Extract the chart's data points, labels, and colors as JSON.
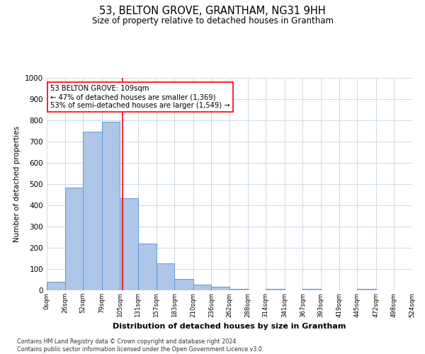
{
  "title": "53, BELTON GROVE, GRANTHAM, NG31 9HH",
  "subtitle": "Size of property relative to detached houses in Grantham",
  "xlabel": "Distribution of detached houses by size in Grantham",
  "ylabel": "Number of detached properties",
  "bar_edges": [
    0,
    26,
    52,
    79,
    105,
    131,
    157,
    183,
    210,
    236,
    262,
    288,
    314,
    341,
    367,
    393,
    419,
    445,
    472,
    498,
    524
  ],
  "bar_heights": [
    40,
    485,
    748,
    795,
    433,
    220,
    127,
    52,
    28,
    16,
    8,
    0,
    7,
    0,
    8,
    0,
    0,
    7,
    0,
    0
  ],
  "bar_color": "#aec6e8",
  "bar_edge_color": "#5b9bd5",
  "property_line_x": 109,
  "property_line_color": "red",
  "annotation_text": "53 BELTON GROVE: 109sqm\n← 47% of detached houses are smaller (1,369)\n53% of semi-detached houses are larger (1,549) →",
  "annotation_box_color": "red",
  "ylim": [
    0,
    1000
  ],
  "yticks": [
    0,
    100,
    200,
    300,
    400,
    500,
    600,
    700,
    800,
    900,
    1000
  ],
  "xtick_labels": [
    "0sqm",
    "26sqm",
    "52sqm",
    "79sqm",
    "105sqm",
    "131sqm",
    "157sqm",
    "183sqm",
    "210sqm",
    "236sqm",
    "262sqm",
    "288sqm",
    "314sqm",
    "341sqm",
    "367sqm",
    "393sqm",
    "419sqm",
    "445sqm",
    "472sqm",
    "498sqm",
    "524sqm"
  ],
  "footer_line1": "Contains HM Land Registry data © Crown copyright and database right 2024.",
  "footer_line2": "Contains public sector information licensed under the Open Government Licence v3.0.",
  "background_color": "#ffffff",
  "grid_color": "#ccd9e8"
}
